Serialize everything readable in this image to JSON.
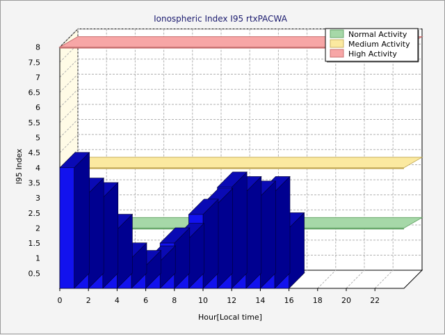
{
  "chart_data": {
    "type": "bar",
    "title": "Ionospheric Index I95 rtxPACWA",
    "xlabel": "Hour[Local time]",
    "ylabel": "I95 Index",
    "x_ticks": [
      "0",
      "2",
      "4",
      "6",
      "8",
      "10",
      "12",
      "14",
      "16",
      "18",
      "20",
      "22"
    ],
    "y_ticks": [
      "0.5",
      "1",
      "1.5",
      "2",
      "2.5",
      "3",
      "3.5",
      "4",
      "4.5",
      "5",
      "5.5",
      "6",
      "6.5",
      "7",
      "7.5",
      "8"
    ],
    "xlim": [
      0,
      25
    ],
    "ylim": [
      0,
      8
    ],
    "grid": true,
    "legend_position": "top-right",
    "hours": [
      0,
      1,
      2,
      3,
      4,
      5,
      6,
      7,
      8,
      9,
      10,
      11,
      12,
      13,
      14,
      15
    ],
    "values": [
      4.0,
      3.15,
      3.0,
      1.95,
      1.0,
      0.75,
      0.9,
      1.5,
      1.65,
      2.45,
      2.8,
      3.35,
      3.2,
      3.05,
      3.2,
      2.0
    ],
    "bands": [
      {
        "name": "Normal Activity",
        "level": 2,
        "color": "#a6d8a8",
        "border": "#6aa86c"
      },
      {
        "name": "Medium Activity",
        "level": 4,
        "color": "#fbe9a0",
        "border": "#c8b060"
      },
      {
        "name": "High Activity",
        "level": 8,
        "color": "#f7a6a6",
        "border": "#c87070"
      }
    ],
    "bar_color": "#1212ee",
    "bar_top_color": "#0a0ab4",
    "bar_side_color": "#000090"
  }
}
